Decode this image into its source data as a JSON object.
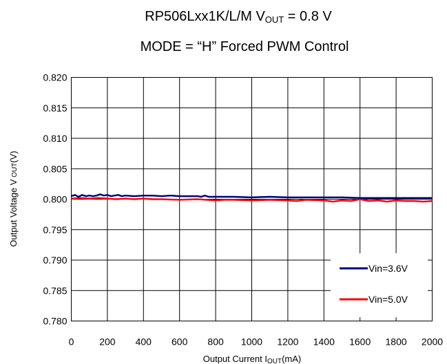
{
  "chart_data": {
    "type": "line",
    "title_line1": {
      "main": "RP506Lxx1K/L/M",
      "v": "V",
      "v_sub": "OUT",
      "v_rest": " = 0.8 V"
    },
    "title_line2": "MODE = “H” Forced PWM Control",
    "xlabel": {
      "main": "Output Current I",
      "sub": "OUT",
      "rest": "(mA)"
    },
    "ylabel": {
      "main": "Output Voltage V",
      "sub": " OUT",
      "rest": "(V)"
    },
    "xlim": [
      0,
      2000
    ],
    "ylim": [
      0.78,
      0.82
    ],
    "x_ticks": [
      "0",
      "200",
      "400",
      "600",
      "800",
      "1000",
      "1200",
      "1400",
      "1600",
      "1800",
      "2000"
    ],
    "y_ticks": [
      "0.820",
      "0.815",
      "0.810",
      "0.805",
      "0.800",
      "0.795",
      "0.790",
      "0.785",
      "0.780"
    ],
    "grid": true,
    "legend_position": "bottom-right",
    "series": [
      {
        "name": "Vin=3.6V",
        "color": "#000080",
        "x": [
          0,
          20,
          40,
          60,
          80,
          100,
          120,
          140,
          160,
          180,
          200,
          220,
          240,
          260,
          280,
          300,
          350,
          400,
          450,
          500,
          550,
          600,
          650,
          700,
          720,
          740,
          760,
          800,
          900,
          1000,
          1100,
          1200,
          1300,
          1400,
          1500,
          1600,
          1700,
          1800,
          1900,
          2000
        ],
        "values": [
          0.8005,
          0.8007,
          0.8004,
          0.8007,
          0.8005,
          0.8006,
          0.8005,
          0.8006,
          0.8008,
          0.8006,
          0.8007,
          0.8005,
          0.8006,
          0.8007,
          0.8005,
          0.8006,
          0.8005,
          0.8006,
          0.8006,
          0.8005,
          0.8006,
          0.8005,
          0.8005,
          0.8005,
          0.8004,
          0.8006,
          0.8004,
          0.8004,
          0.8004,
          0.8003,
          0.8004,
          0.8003,
          0.8003,
          0.8003,
          0.8003,
          0.8002,
          0.8002,
          0.8002,
          0.8002,
          0.8002
        ]
      },
      {
        "name": "Vin=5.0V",
        "color": "#ff0000",
        "x": [
          0,
          50,
          100,
          150,
          200,
          250,
          300,
          350,
          400,
          450,
          500,
          600,
          700,
          800,
          850,
          900,
          1000,
          1100,
          1200,
          1250,
          1300,
          1400,
          1450,
          1500,
          1550,
          1600,
          1650,
          1700,
          1750,
          1800,
          1850,
          1900,
          1950,
          2000
        ],
        "values": [
          0.8001,
          0.8002,
          0.8001,
          0.8002,
          0.8001,
          0.8,
          0.8001,
          0.8,
          0.8001,
          0.8,
          0.8,
          0.7999,
          0.8,
          0.7998,
          0.7999,
          0.7999,
          0.7998,
          0.7999,
          0.7998,
          0.7997,
          0.7999,
          0.7998,
          0.7996,
          0.7998,
          0.7997,
          0.8,
          0.7997,
          0.7998,
          0.7996,
          0.7998,
          0.7997,
          0.7997,
          0.7996,
          0.7997
        ]
      }
    ]
  }
}
